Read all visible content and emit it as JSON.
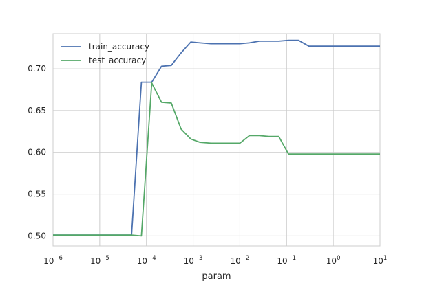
{
  "chart_data": {
    "type": "line",
    "title": "",
    "xlabel": "param",
    "ylabel": "",
    "xscale": "log",
    "xlim": [
      1e-06,
      10
    ],
    "ylim": [
      0.488,
      0.742
    ],
    "grid": true,
    "legend": "top-left",
    "x_ticks": [
      {
        "base": "10",
        "exp": "−6",
        "value": 1e-06
      },
      {
        "base": "10",
        "exp": "−5",
        "value": 1e-05
      },
      {
        "base": "10",
        "exp": "−4",
        "value": 0.0001
      },
      {
        "base": "10",
        "exp": "−3",
        "value": 0.001
      },
      {
        "base": "10",
        "exp": "−2",
        "value": 0.01
      },
      {
        "base": "10",
        "exp": "−1",
        "value": 0.1
      },
      {
        "base": "10",
        "exp": "0",
        "value": 1
      },
      {
        "base": "10",
        "exp": "1",
        "value": 10
      }
    ],
    "y_ticks": [
      {
        "label": "0.50",
        "value": 0.5
      },
      {
        "label": "0.55",
        "value": 0.55
      },
      {
        "label": "0.60",
        "value": 0.6
      },
      {
        "label": "0.65",
        "value": 0.65
      },
      {
        "label": "0.70",
        "value": 0.7
      }
    ],
    "series": [
      {
        "name": "train_accuracy",
        "color": "#4c72b0",
        "x": [
          1e-06,
          1.6e-06,
          2.6e-06,
          4.2e-06,
          6.8e-06,
          1.1e-05,
          1.8e-05,
          3e-05,
          4.8e-05,
          7.8e-05,
          0.00013,
          0.00021,
          0.00034,
          0.00055,
          0.00089,
          0.0014,
          0.0024,
          0.0038,
          0.0062,
          0.01,
          0.016,
          0.026,
          0.042,
          0.068,
          0.11,
          0.18,
          0.3,
          0.48,
          0.78,
          1.3,
          2.1,
          3.4,
          5.5,
          10
        ],
        "y": [
          0.501,
          0.501,
          0.501,
          0.501,
          0.501,
          0.501,
          0.501,
          0.501,
          0.501,
          0.684,
          0.684,
          0.703,
          0.704,
          0.719,
          0.732,
          0.731,
          0.73,
          0.73,
          0.73,
          0.73,
          0.731,
          0.733,
          0.733,
          0.733,
          0.734,
          0.734,
          0.727,
          0.727,
          0.727,
          0.727,
          0.727,
          0.727,
          0.727,
          0.727
        ]
      },
      {
        "name": "test_accuracy",
        "color": "#55a868",
        "x": [
          1e-06,
          1.6e-06,
          2.6e-06,
          4.2e-06,
          6.8e-06,
          1.1e-05,
          1.8e-05,
          3e-05,
          4.8e-05,
          7.8e-05,
          0.00013,
          0.00021,
          0.00034,
          0.00055,
          0.00089,
          0.0014,
          0.0024,
          0.0038,
          0.0062,
          0.01,
          0.016,
          0.026,
          0.042,
          0.068,
          0.11,
          0.18,
          0.3,
          0.48,
          0.78,
          1.3,
          2.1,
          3.4,
          5.5,
          10
        ],
        "y": [
          0.501,
          0.501,
          0.501,
          0.501,
          0.501,
          0.501,
          0.501,
          0.501,
          0.501,
          0.5,
          0.683,
          0.66,
          0.659,
          0.628,
          0.616,
          0.612,
          0.611,
          0.611,
          0.611,
          0.611,
          0.62,
          0.62,
          0.619,
          0.619,
          0.598,
          0.598,
          0.598,
          0.598,
          0.598,
          0.598,
          0.598,
          0.598,
          0.598,
          0.598
        ]
      }
    ]
  }
}
